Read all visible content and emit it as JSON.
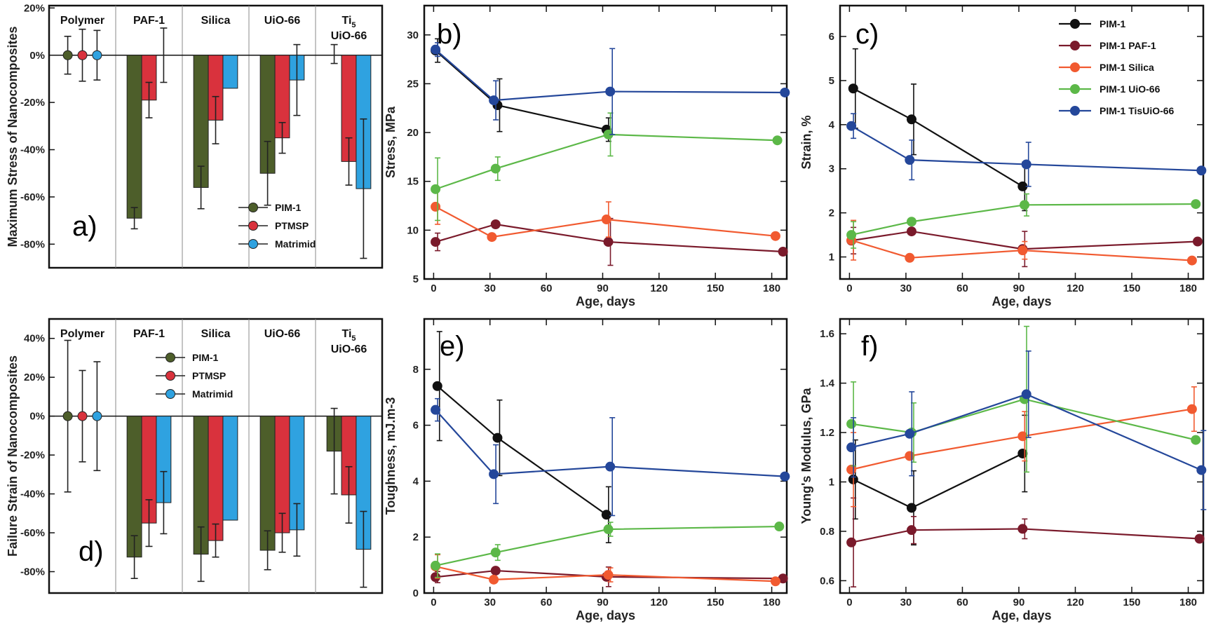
{
  "colors": {
    "PIM-1": "#111111",
    "PIM-1 PAF-1": "#7a1a2b",
    "PIM-1 Silica": "#f15a30",
    "PIM-1 UiO-66": "#5cb848",
    "PIM-1 TisUiO-66": "#24479a",
    "bar_PIM-1": "#4d5e2a",
    "bar_PTMSP": "#d9323d",
    "bar_Matrimid": "#2fa2e0"
  },
  "chart_data": [
    {
      "id": "a",
      "type": "bar",
      "panel_label": "a)",
      "categories": [
        "Polymer",
        "PAF-1",
        "Silica",
        "UiO-66",
        "Ti5 UiO-66"
      ],
      "category_lines": [
        [
          "Polymer"
        ],
        [
          "PAF-1"
        ],
        [
          "Silica"
        ],
        [
          "UiO-66"
        ],
        [
          "Ti5",
          "UiO-66"
        ]
      ],
      "ylabel": "Maximum Stress of Nanocomposites",
      "ylim": [
        -90,
        21
      ],
      "yticks": [
        20,
        0,
        -20,
        -40,
        -60,
        -80
      ],
      "ytick_labels": [
        "20%",
        "0%",
        "-20%",
        "-40%",
        "-60%",
        "-80%"
      ],
      "legend_position": "bottom-right",
      "series": [
        {
          "name": "PIM-1",
          "values": [
            0,
            -69,
            -56,
            -50,
            0.5
          ],
          "errors": [
            8,
            4.5,
            9,
            13.5,
            4
          ]
        },
        {
          "name": "PTMSP",
          "values": [
            0,
            -19,
            -27.5,
            -35,
            -45
          ],
          "errors": [
            11,
            7.5,
            10,
            6.5,
            10
          ]
        },
        {
          "name": "Matrimid",
          "values": [
            0,
            0,
            -14,
            -10.5,
            -56.5
          ],
          "errors": [
            10.5,
            11.5,
            0,
            15,
            29.5
          ]
        }
      ]
    },
    {
      "id": "d",
      "type": "bar",
      "panel_label": "d)",
      "categories": [
        "Polymer",
        "PAF-1",
        "Silica",
        "UiO-66",
        "Ti5 UiO-66"
      ],
      "category_lines": [
        [
          "Polymer"
        ],
        [
          "PAF-1"
        ],
        [
          "Silica"
        ],
        [
          "UiO-66"
        ],
        [
          "Ti5",
          "UiO-66"
        ]
      ],
      "ylabel": "Failure Strain of Nanocomposites",
      "ylim": [
        -91,
        50
      ],
      "yticks": [
        40,
        20,
        0,
        -20,
        -40,
        -60,
        -80
      ],
      "ytick_labels": [
        "40%",
        "20%",
        "0%",
        "-20%",
        "-40%",
        "-60%",
        "-80%"
      ],
      "legend_position": "top-center",
      "series": [
        {
          "name": "PIM-1",
          "values": [
            0,
            -72.5,
            -71,
            -69,
            -18
          ],
          "errors": [
            39,
            11,
            14,
            10,
            22
          ]
        },
        {
          "name": "PTMSP",
          "values": [
            0,
            -55,
            -64,
            -60,
            -40.5
          ],
          "errors": [
            23.5,
            12,
            8.5,
            10,
            14.5
          ]
        },
        {
          "name": "Matrimid",
          "values": [
            0,
            -44.5,
            -53.5,
            -58.5,
            -68.5
          ],
          "errors": [
            28,
            16,
            0,
            13.5,
            19.5
          ]
        }
      ]
    },
    {
      "id": "b",
      "type": "line",
      "panel_label": "b)",
      "xlabel": "Age, days",
      "ylabel": "Stress, MPa",
      "xlim": [
        -5,
        188
      ],
      "ylim": [
        5,
        33
      ],
      "xticks": [
        0,
        30,
        60,
        90,
        120,
        150,
        180
      ],
      "yticks": [
        5,
        10,
        15,
        20,
        25,
        30
      ],
      "series": [
        {
          "name": "PIM-1",
          "x": [
            1,
            34,
            92
          ],
          "y": [
            28.4,
            22.8,
            20.3
          ],
          "err": [
            1.2,
            2.7,
            1.2
          ]
        },
        {
          "name": "PIM-1 PAF-1",
          "x": [
            1,
            33,
            93,
            186
          ],
          "y": [
            8.8,
            10.6,
            8.8,
            7.8
          ],
          "err": [
            0.9,
            0,
            2.4,
            0
          ]
        },
        {
          "name": "PIM-1 Silica",
          "x": [
            1,
            31,
            92,
            182
          ],
          "y": [
            12.4,
            9.3,
            11.1,
            9.4
          ],
          "err": [
            1.8,
            0,
            1.8,
            0
          ]
        },
        {
          "name": "PIM-1 UiO-66",
          "x": [
            1,
            33,
            93,
            183
          ],
          "y": [
            14.2,
            16.3,
            19.8,
            19.2
          ],
          "err": [
            3.2,
            1.2,
            2.2,
            0
          ]
        },
        {
          "name": "PIM-1 TisUiO-66",
          "x": [
            1,
            32,
            94,
            187
          ],
          "y": [
            28.5,
            23.3,
            24.2,
            24.1
          ],
          "err": [
            0.7,
            2,
            4.4,
            0
          ]
        }
      ]
    },
    {
      "id": "c",
      "type": "line",
      "panel_label": "c)",
      "xlabel": "Age, days",
      "ylabel": "Strain, %",
      "xlim": [
        -5,
        188
      ],
      "ylim": [
        0.5,
        6.7
      ],
      "xticks": [
        0,
        30,
        60,
        90,
        120,
        150,
        180
      ],
      "yticks": [
        1,
        2,
        3,
        4,
        5,
        6
      ],
      "legend_position": "top-right",
      "legend_entries": [
        "PIM-1",
        "PIM-1 PAF-1",
        "PIM-1 Silica",
        "PIM-1 UiO-66",
        "PIM-1 TisUiO-66"
      ],
      "series": [
        {
          "name": "PIM-1",
          "x": [
            2,
            33,
            92
          ],
          "y": [
            4.82,
            4.12,
            2.6
          ],
          "err": [
            0.9,
            0.8,
            0.55
          ]
        },
        {
          "name": "PIM-1 PAF-1",
          "x": [
            1,
            33,
            92,
            185
          ],
          "y": [
            1.37,
            1.58,
            1.18,
            1.35
          ],
          "err": [
            0.3,
            0,
            0.4,
            0
          ]
        },
        {
          "name": "PIM-1 Silica",
          "x": [
            1,
            32,
            92,
            182
          ],
          "y": [
            1.38,
            0.98,
            1.15,
            0.92
          ],
          "err": [
            0.45,
            0,
            0.2,
            0
          ]
        },
        {
          "name": "PIM-1 UiO-66",
          "x": [
            1,
            33,
            93,
            184
          ],
          "y": [
            1.5,
            1.8,
            2.18,
            2.2
          ],
          "err": [
            0.3,
            0,
            0.25,
            0
          ]
        },
        {
          "name": "PIM-1 TisUiO-66",
          "x": [
            1,
            32,
            94,
            187
          ],
          "y": [
            3.97,
            3.2,
            3.1,
            2.96
          ],
          "err": [
            0.28,
            0.45,
            0.5,
            0
          ]
        }
      ]
    },
    {
      "id": "e",
      "type": "line",
      "panel_label": "e)",
      "xlabel": "Age, days",
      "ylabel": "Toughness, mJ.m-3",
      "xlim": [
        -5,
        188
      ],
      "ylim": [
        0,
        9.8
      ],
      "xticks": [
        0,
        30,
        60,
        90,
        120,
        150,
        180
      ],
      "yticks": [
        0,
        2,
        4,
        6,
        8
      ],
      "series": [
        {
          "name": "PIM-1",
          "x": [
            2,
            34,
            92
          ],
          "y": [
            7.4,
            5.55,
            2.8
          ],
          "err": [
            1.95,
            1.35,
            1
          ]
        },
        {
          "name": "PIM-1 PAF-1",
          "x": [
            1,
            33,
            92,
            186
          ],
          "y": [
            0.57,
            0.8,
            0.58,
            0.52
          ],
          "err": [
            0.2,
            0,
            0.35,
            0
          ]
        },
        {
          "name": "PIM-1 Silica",
          "x": [
            1,
            32,
            93,
            182
          ],
          "y": [
            0.95,
            0.48,
            0.65,
            0.42
          ],
          "err": [
            0.42,
            0,
            0.25,
            0
          ]
        },
        {
          "name": "PIM-1 UiO-66",
          "x": [
            1,
            33,
            93,
            184
          ],
          "y": [
            0.98,
            1.45,
            2.28,
            2.38
          ],
          "err": [
            0.42,
            0.28,
            0.25,
            0
          ]
        },
        {
          "name": "PIM-1 TisUiO-66",
          "x": [
            1,
            32,
            94,
            187
          ],
          "y": [
            6.55,
            4.25,
            4.52,
            4.17
          ],
          "err": [
            0.4,
            1.05,
            1.75,
            0
          ]
        }
      ]
    },
    {
      "id": "f",
      "type": "line",
      "panel_label": "f)",
      "xlabel": "Age, days",
      "ylabel": "Young's Modulus, GPa",
      "ytick_labels": [
        "0.6",
        "0.8",
        "1",
        "1.2",
        "1.4",
        "1.6"
      ],
      "xlim": [
        -5,
        188
      ],
      "ylim": [
        0.55,
        1.66
      ],
      "xticks": [
        0,
        30,
        60,
        90,
        120,
        150,
        180
      ],
      "yticks": [
        0.6,
        0.8,
        1,
        1.2,
        1.4,
        1.6
      ],
      "series": [
        {
          "name": "PIM-1",
          "x": [
            2,
            33,
            92
          ],
          "y": [
            1.01,
            0.895,
            1.115
          ],
          "err": [
            0.16,
            0.15,
            0.155
          ]
        },
        {
          "name": "PIM-1 PAF-1",
          "x": [
            1,
            33,
            92,
            186
          ],
          "y": [
            0.755,
            0.805,
            0.81,
            0.77
          ],
          "err": [
            0.18,
            0.055,
            0.04,
            0
          ]
        },
        {
          "name": "PIM-1 Silica",
          "x": [
            1,
            32,
            92,
            182
          ],
          "y": [
            1.05,
            1.105,
            1.185,
            1.295
          ],
          "err": [
            0.15,
            0,
            0.1,
            0.09
          ]
        },
        {
          "name": "PIM-1 UiO-66",
          "x": [
            1,
            33,
            93,
            184
          ],
          "y": [
            1.235,
            1.2,
            1.335,
            1.17
          ],
          "err": [
            0.17,
            0.12,
            0.295,
            0
          ]
        },
        {
          "name": "PIM-1 TisUiO-66",
          "x": [
            1,
            32,
            94,
            187
          ],
          "y": [
            1.14,
            1.195,
            1.355,
            1.048
          ],
          "err": [
            0.12,
            0.17,
            0.175,
            0.16
          ]
        }
      ]
    }
  ]
}
